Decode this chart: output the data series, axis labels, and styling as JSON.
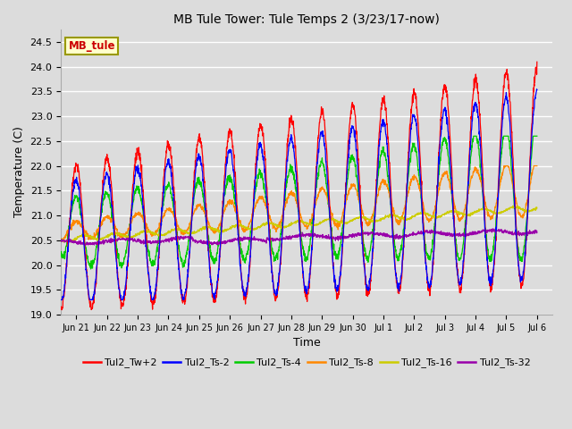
{
  "title": "MB Tule Tower: Tule Temps 2 (3/23/17-now)",
  "xlabel": "Time",
  "ylabel": "Temperature (C)",
  "ylim": [
    19.0,
    24.75
  ],
  "yticks": [
    19.0,
    19.5,
    20.0,
    20.5,
    21.0,
    21.5,
    22.0,
    22.5,
    23.0,
    23.5,
    24.0,
    24.5
  ],
  "bg_color": "#dcdcdc",
  "plot_bg_color": "#dcdcdc",
  "grid_color": "#ffffff",
  "legend_label": "MB_tule",
  "legend_box_color": "#ffffcc",
  "legend_box_edge": "#999900",
  "legend_text_color": "#cc0000",
  "series_colors": {
    "Tul2_Tw+2": "#ff0000",
    "Tul2_Ts-2": "#0000ff",
    "Tul2_Ts-4": "#00cc00",
    "Tul2_Ts-8": "#ff8800",
    "Tul2_Ts-16": "#cccc00",
    "Tul2_Ts-32": "#9900aa"
  },
  "tick_labels": [
    "Jun 21",
    "Jun 22",
    "Jun 23",
    "Jun 24",
    "Jun 25",
    "Jun 26",
    "Jun 27",
    "Jun 28",
    "Jun 29",
    "Jun 30",
    "Jul 1",
    "Jul 2",
    "Jul 3",
    "Jul 4",
    "Jul 5",
    "Jul 6"
  ],
  "num_points": 2000
}
